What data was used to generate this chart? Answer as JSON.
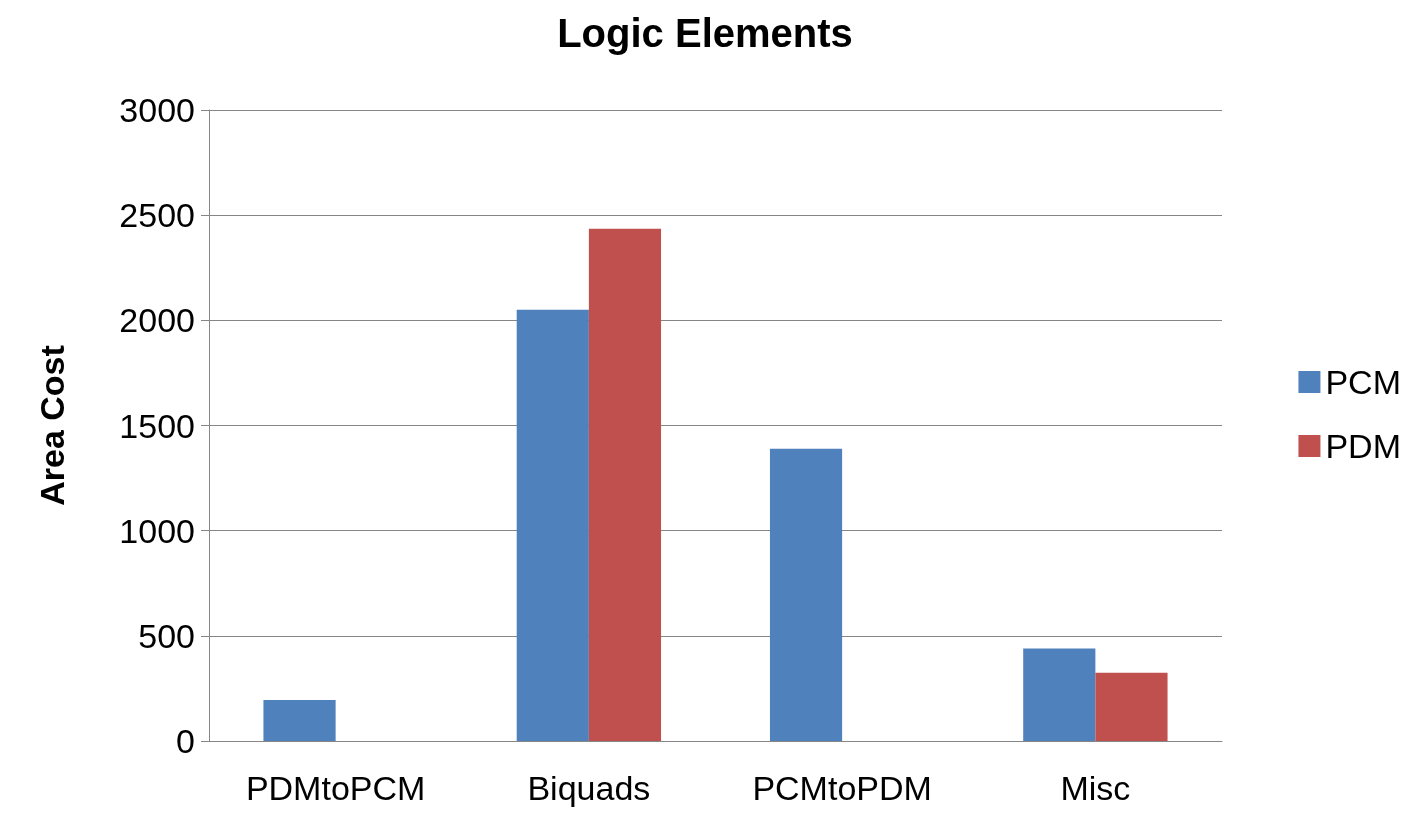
{
  "chart_data": {
    "type": "bar",
    "title": "Logic Elements",
    "ylabel": "Area Cost",
    "categories": [
      "PDMtoPCM",
      "Biquads",
      "PCMtoPDM",
      "Misc"
    ],
    "series": [
      {
        "name": "PCM",
        "color": "#4f81bd",
        "values": [
          195,
          2050,
          1390,
          440
        ]
      },
      {
        "name": "PDM",
        "color": "#c0504d",
        "values": [
          0,
          2435,
          0,
          325
        ]
      }
    ],
    "ylim": [
      0,
      3000
    ],
    "yticks": [
      0,
      500,
      1000,
      1500,
      2000,
      2500,
      3000
    ],
    "grid": "y",
    "legend": "right"
  }
}
